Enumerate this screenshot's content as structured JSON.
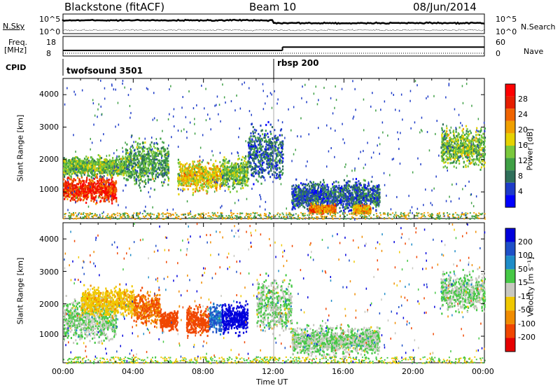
{
  "header": {
    "station": "Blackstone (fitACF)",
    "beam": "Beam 10",
    "date": "08/Jun/2014"
  },
  "top_panel": {
    "nsky_label": "N.Sky",
    "nsky_ticks": [
      "10^5",
      "10^0"
    ],
    "nsearch_label": "N.Search",
    "nsearch_ticks": [
      "10^5",
      "10^0"
    ],
    "freq_label": "Freq.",
    "freq_unit": "[MHz]",
    "freq_ticks": [
      "18",
      "8"
    ],
    "nave_label": "Nave",
    "nave_ticks": [
      "60",
      "0"
    ],
    "cpid_label": "CPID",
    "cpid_modes": [
      {
        "name": "twofsound 3501",
        "start_hour": 0
      },
      {
        "name": "rbsp 200",
        "start_hour": 12.0
      }
    ]
  },
  "power_panel": {
    "ylabel": "Slant Range [km]",
    "yticks": [
      "4000",
      "3000",
      "2000",
      "1000"
    ],
    "colorbar_label": "Power [dB]",
    "colorbar_ticks": [
      "28",
      "24",
      "20",
      "16",
      "12",
      "8",
      "4"
    ],
    "colors": [
      "#0000ff",
      "#1e3cc8",
      "#2f6f5a",
      "#3fa045",
      "#7ac83c",
      "#e6d200",
      "#f0a000",
      "#f06400",
      "#e61e00",
      "#ff0000"
    ]
  },
  "velocity_panel": {
    "ylabel": "Slant Range [km]",
    "yticks": [
      "4000",
      "3000",
      "2000",
      "1000"
    ],
    "colorbar_label": "Velocity [m s⁻¹]",
    "colorbar_ticks": [
      "200",
      "100",
      "50",
      "15",
      "-15",
      "-50",
      "-100",
      "-200"
    ],
    "colors": [
      "#0000dc",
      "#1e50c8",
      "#1e8cc8",
      "#46c846",
      "#c8c8c0",
      "#f0c800",
      "#f08c00",
      "#f04600",
      "#e60000"
    ]
  },
  "x_axis": {
    "label": "Time UT",
    "ticks": [
      "00:00",
      "04:00",
      "08:00",
      "12:00",
      "16:00",
      "20:00",
      "00:00"
    ]
  },
  "chart_data": {
    "type": "heatmap",
    "x_range_hours": [
      0,
      24
    ],
    "y_range_km": [
      180,
      4500
    ],
    "power_regions": [
      {
        "t0": 0.0,
        "t1": 3.0,
        "r_center": 1100,
        "r_width": 500,
        "power": 26
      },
      {
        "t0": 0.0,
        "t1": 3.5,
        "r_center": 1800,
        "r_width": 400,
        "power": 14
      },
      {
        "t0": 3.5,
        "t1": 6.0,
        "r_center": 1900,
        "r_width": 900,
        "power": 12
      },
      {
        "t0": 6.5,
        "t1": 9.0,
        "r_center": 1500,
        "r_width": 600,
        "power": 18
      },
      {
        "t0": 9.0,
        "t1": 10.5,
        "r_center": 1600,
        "r_width": 600,
        "power": 14
      },
      {
        "t0": 10.5,
        "t1": 12.5,
        "r_center": 2200,
        "r_width": 1200,
        "power": 8
      },
      {
        "t0": 13.0,
        "t1": 18.0,
        "r_center": 900,
        "r_width": 600,
        "power": 8
      },
      {
        "t0": 14.0,
        "t1": 15.5,
        "r_center": 500,
        "r_width": 200,
        "power": 22
      },
      {
        "t0": 16.5,
        "t1": 17.5,
        "r_center": 500,
        "r_width": 200,
        "power": 20
      },
      {
        "t0": 21.5,
        "t1": 24.0,
        "r_center": 2400,
        "r_width": 800,
        "power": 14
      }
    ],
    "velocity_regions": [
      {
        "t0": 0.0,
        "t1": 3.0,
        "r_center": 1500,
        "r_width": 900,
        "velocity": 0
      },
      {
        "t0": 1.0,
        "t1": 4.0,
        "r_center": 2100,
        "r_width": 600,
        "velocity": -60
      },
      {
        "t0": 4.0,
        "t1": 5.5,
        "r_center": 1900,
        "r_width": 700,
        "velocity": -150
      },
      {
        "t0": 5.5,
        "t1": 6.5,
        "r_center": 1500,
        "r_width": 400,
        "velocity": -200
      },
      {
        "t0": 7.0,
        "t1": 8.3,
        "r_center": 1500,
        "r_width": 600,
        "velocity": -180
      },
      {
        "t0": 8.3,
        "t1": 9.0,
        "r_center": 1600,
        "r_width": 600,
        "velocity": 80
      },
      {
        "t0": 9.0,
        "t1": 10.5,
        "r_center": 1600,
        "r_width": 600,
        "velocity": 200
      },
      {
        "t0": 11.0,
        "t1": 13.0,
        "r_center": 2000,
        "r_width": 1200,
        "velocity": 0
      },
      {
        "t0": 13.0,
        "t1": 18.0,
        "r_center": 900,
        "r_width": 600,
        "velocity": 0
      },
      {
        "t0": 21.5,
        "t1": 24.0,
        "r_center": 2400,
        "r_width": 800,
        "velocity": 0
      }
    ],
    "freq_mhz": [
      {
        "t0": 0,
        "t1": 12.5,
        "value": 10.5
      },
      {
        "t0": 12.5,
        "t1": 24,
        "value": 12.5
      }
    ],
    "nave": [
      {
        "t0": 0,
        "t1": 24,
        "value": 0
      }
    ]
  }
}
